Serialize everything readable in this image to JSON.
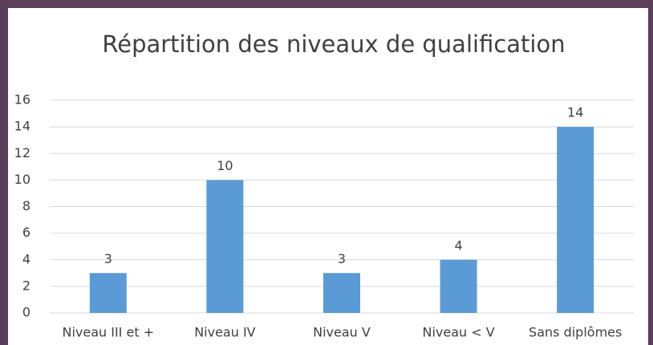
{
  "chart_data": {
    "type": "bar",
    "title": "Répartition des niveaux de qualification",
    "categories": [
      "Niveau III et +",
      "Niveau IV",
      "Niveau V",
      "Niveau < V",
      "Sans diplômes"
    ],
    "values": [
      3,
      10,
      3,
      4,
      14
    ],
    "color": "#5b9bd5",
    "ylim": [
      0,
      16
    ],
    "yticks": [
      0,
      2,
      4,
      6,
      8,
      10,
      12,
      14,
      16
    ],
    "grid": true
  }
}
